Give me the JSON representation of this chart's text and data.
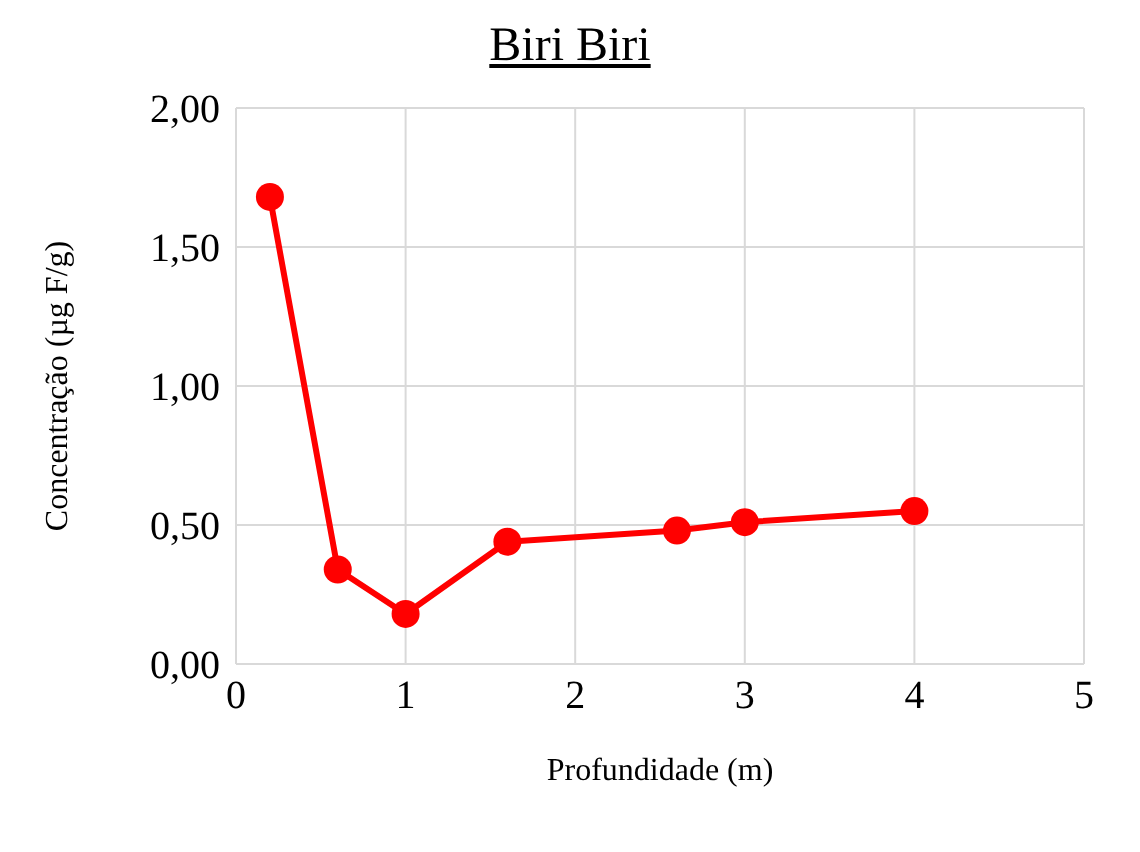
{
  "chart_data": {
    "type": "line",
    "title": "Biri Biri",
    "xlabel": "Profundidade (m)",
    "ylabel": "Concentração (µg F/g)",
    "x": [
      0.2,
      0.6,
      1,
      1.6,
      2.6,
      3,
      4
    ],
    "series": [
      {
        "color": "#ff0000",
        "values": [
          1.68,
          0.34,
          0.18,
          0.44,
          0.48,
          0.51,
          0.55
        ]
      }
    ],
    "xlim": [
      0,
      5
    ],
    "xticks": [
      0,
      1,
      2,
      3,
      4,
      5
    ],
    "ylim": [
      0,
      2
    ],
    "yticks": [
      {
        "value": 0,
        "label": "0,00"
      },
      {
        "value": 0.5,
        "label": "0,50"
      },
      {
        "value": 1,
        "label": "1,00"
      },
      {
        "value": 1.5,
        "label": "1,50"
      },
      {
        "value": 2,
        "label": "2,00"
      }
    ],
    "grid": true,
    "marker": "circle",
    "line_style": "solid",
    "legend": false
  }
}
